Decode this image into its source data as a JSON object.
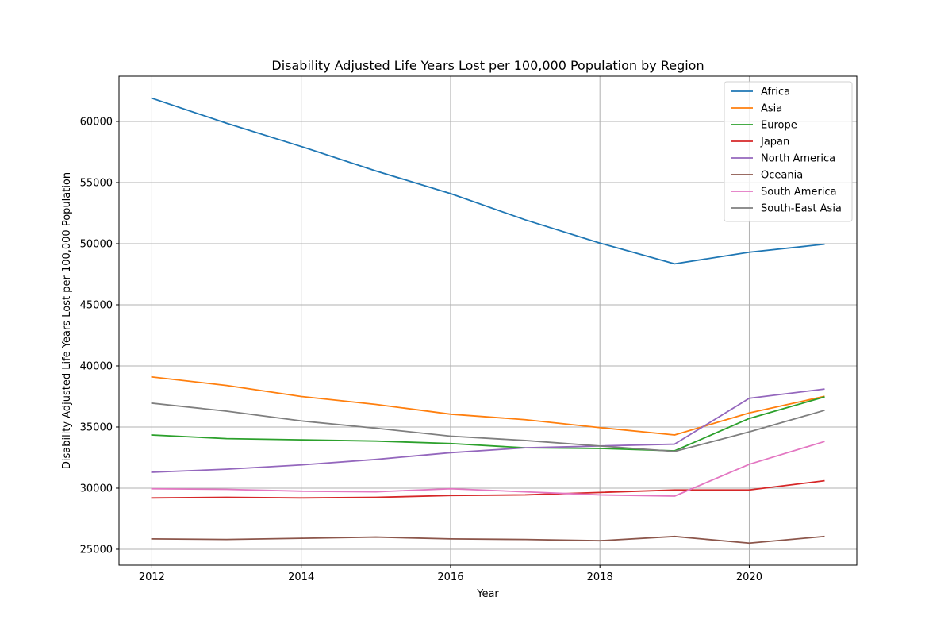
{
  "chart_data": {
    "type": "line",
    "title": "Disability Adjusted Life Years Lost per 100,000 Population by Region",
    "xlabel": "Year",
    "ylabel": "Disability Adjusted Life Years Lost per 100,000 Population",
    "x": [
      2012,
      2013,
      2014,
      2015,
      2016,
      2017,
      2018,
      2019,
      2020,
      2021
    ],
    "xlim": [
      2011.56,
      2021.44
    ],
    "ylim": [
      23700,
      63700
    ],
    "xticks": [
      2012,
      2014,
      2016,
      2018,
      2020
    ],
    "yticks": [
      25000,
      30000,
      35000,
      40000,
      45000,
      50000,
      55000,
      60000
    ],
    "grid": true,
    "legend_position": "top-right",
    "series": [
      {
        "name": "Africa",
        "color": "#1f77b4",
        "values": [
          61900,
          59850,
          57950,
          55950,
          54100,
          51950,
          50050,
          48350,
          49300,
          49950
        ]
      },
      {
        "name": "Asia",
        "color": "#ff7f0e",
        "values": [
          39100,
          38400,
          37500,
          36850,
          36050,
          35600,
          34950,
          34350,
          36150,
          37500
        ]
      },
      {
        "name": "Europe",
        "color": "#2ca02c",
        "values": [
          34350,
          34050,
          33950,
          33850,
          33650,
          33300,
          33250,
          33050,
          35700,
          37450
        ]
      },
      {
        "name": "Japan",
        "color": "#d62728",
        "values": [
          29200,
          29250,
          29200,
          29250,
          29400,
          29450,
          29650,
          29850,
          29850,
          30600
        ]
      },
      {
        "name": "North America",
        "color": "#9467bd",
        "values": [
          31300,
          31550,
          31900,
          32350,
          32900,
          33300,
          33450,
          33600,
          37350,
          38100
        ]
      },
      {
        "name": "Oceania",
        "color": "#8c564b",
        "values": [
          25850,
          25800,
          25900,
          26000,
          25850,
          25800,
          25700,
          26050,
          25500,
          26050
        ]
      },
      {
        "name": "South America",
        "color": "#e377c2",
        "values": [
          29950,
          29900,
          29750,
          29700,
          29950,
          29700,
          29450,
          29350,
          31950,
          33800
        ]
      },
      {
        "name": "South-East Asia",
        "color": "#7f7f7f",
        "values": [
          36950,
          36300,
          35500,
          34900,
          34250,
          33900,
          33450,
          33000,
          34600,
          36350
        ]
      }
    ]
  }
}
